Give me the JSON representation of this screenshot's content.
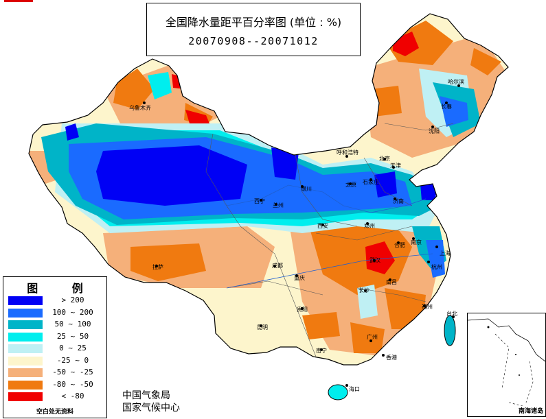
{
  "title": {
    "main": "全国降水量距平百分率图 (单位 : %)",
    "dates": "20070908--20071012"
  },
  "legend": {
    "title": "图 例",
    "items": [
      {
        "label": "> 200",
        "color": "#0000f5"
      },
      {
        "label": "100 ~ 200",
        "color": "#1a6bff"
      },
      {
        "label": "50 ~ 100",
        "color": "#00b4c8"
      },
      {
        "label": "25 ~ 50",
        "color": "#00eeee"
      },
      {
        "label": "0 ~ 25",
        "color": "#bff0f4"
      },
      {
        "label": "-25 ~ 0",
        "color": "#fdf5cc"
      },
      {
        "label": "-50 ~ -25",
        "color": "#f5b07a"
      },
      {
        "label": "-80 ~ -50",
        "color": "#f07a10"
      },
      {
        "label": "< -80",
        "color": "#f00000"
      }
    ],
    "note": "空白处无资料"
  },
  "agency": {
    "line1": "中国气象局",
    "line2": "国家气候中心"
  },
  "inset_label": "南海诸岛",
  "cities": [
    {
      "name": "乌鲁木齐"
    },
    {
      "name": "哈尔滨"
    },
    {
      "name": "长春"
    },
    {
      "name": "沈阳"
    },
    {
      "name": "呼和浩特"
    },
    {
      "name": "北京"
    },
    {
      "name": "天津"
    },
    {
      "name": "太原"
    },
    {
      "name": "石家庄"
    },
    {
      "name": "银川"
    },
    {
      "name": "西宁"
    },
    {
      "name": "兰州"
    },
    {
      "name": "济南"
    },
    {
      "name": "郑州"
    },
    {
      "name": "西安"
    },
    {
      "name": "拉萨"
    },
    {
      "name": "成都"
    },
    {
      "name": "武汉"
    },
    {
      "name": "合肥"
    },
    {
      "name": "南京"
    },
    {
      "name": "上海"
    },
    {
      "name": "杭州"
    },
    {
      "name": "重庆"
    },
    {
      "name": "长沙"
    },
    {
      "name": "南昌"
    },
    {
      "name": "福州"
    },
    {
      "name": "贵阳"
    },
    {
      "name": "昆明"
    },
    {
      "name": "南宁"
    },
    {
      "name": "广州"
    },
    {
      "name": "香港"
    },
    {
      "name": "台北"
    },
    {
      "name": "海口"
    }
  ]
}
